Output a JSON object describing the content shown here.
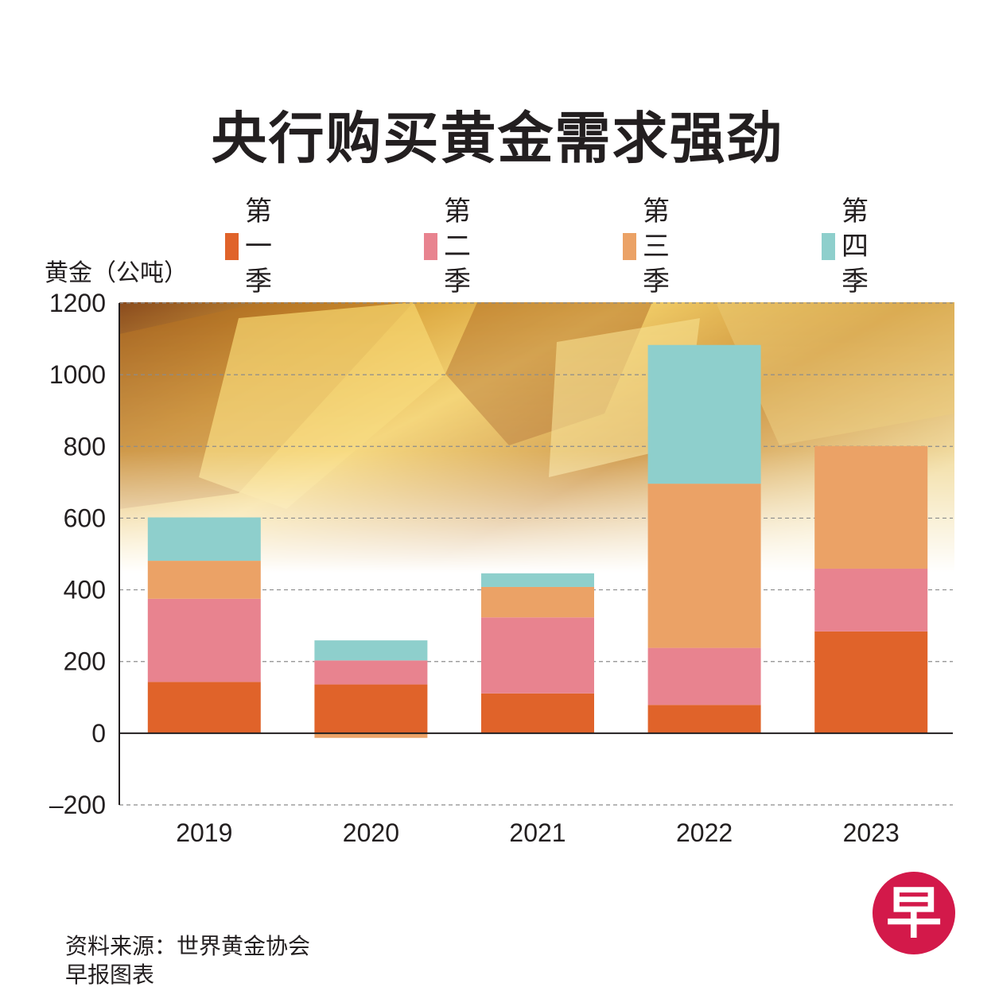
{
  "title": "央行购买黄金需求强劲",
  "legend": [
    {
      "label": "第一季",
      "color": "#e0632a"
    },
    {
      "label": "第二季",
      "color": "#e8838f"
    },
    {
      "label": "第三季",
      "color": "#eba266"
    },
    {
      "label": "第四季",
      "color": "#8ecfcc"
    }
  ],
  "unit_label": "黄金（公吨）",
  "footer": {
    "source": "资料来源：世界黄金协会",
    "credit": "早报图表"
  },
  "logo_text": "早",
  "chart_data": {
    "type": "bar",
    "stacked": true,
    "title": "央行购买黄金需求强劲",
    "ylabel": "黄金（公吨）",
    "xlabel": "",
    "ylim": [
      -200,
      1200
    ],
    "yticks": [
      "1200",
      "1000",
      "800",
      "600",
      "400",
      "200",
      "0",
      "–200"
    ],
    "ytick_values": [
      1200,
      1000,
      800,
      600,
      400,
      200,
      0,
      -200
    ],
    "categories": [
      "2019",
      "2020",
      "2021",
      "2022",
      "2023"
    ],
    "series": [
      {
        "name": "第一季",
        "values": [
          143,
          136,
          111,
          79,
          284
        ]
      },
      {
        "name": "第二季",
        "values": [
          232,
          67,
          212,
          159,
          175
        ]
      },
      {
        "name": "第三季",
        "values": [
          106,
          -13,
          85,
          458,
          342
        ]
      },
      {
        "name": "第四季",
        "values": [
          121,
          56,
          38,
          387,
          0
        ]
      }
    ],
    "grid": true,
    "legend_position": "top"
  }
}
